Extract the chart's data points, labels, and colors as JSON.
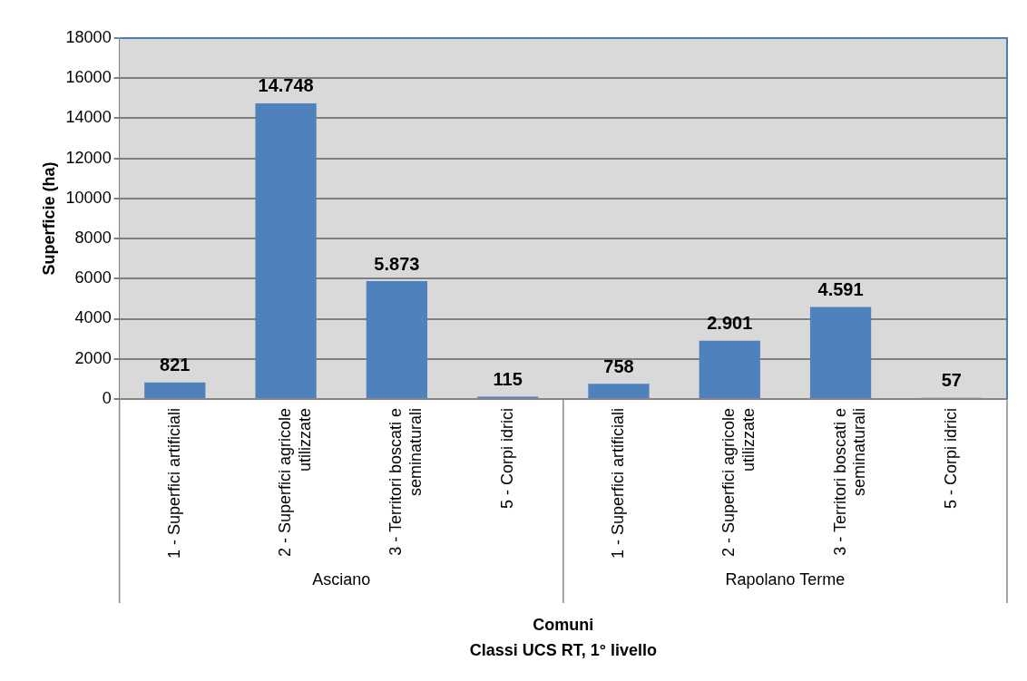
{
  "chart_data": {
    "type": "bar",
    "xlabel": "Comuni\nClassi UCS RT, 1° livello",
    "ylabel": "Superficie (ha)",
    "categories": [
      "1 - Superfici artificiali",
      "2 - Superfici agricole utilizzate",
      "3 - Territori boscati e seminaturali",
      "5 - Corpi idrici",
      "1 - Superfici artificiali",
      "2 - Superfici agricole utilizzate",
      "3 - Territori boscati e seminaturali",
      "5 - Corpi idrici"
    ],
    "values": [
      821,
      14748,
      5873,
      115,
      758,
      2901,
      4591,
      57
    ],
    "value_labels": [
      "821",
      "14.748",
      "5.873",
      "115",
      "758",
      "2.901",
      "4.591",
      "57"
    ],
    "color": "#4f81bd",
    "ylim": [
      0,
      18000
    ],
    "yticks": [
      0,
      2000,
      4000,
      6000,
      8000,
      10000,
      12000,
      14000,
      16000,
      18000
    ],
    "grid": "y",
    "legend": false,
    "annotations": [
      "Asciano",
      "Rapolano Terme"
    ]
  }
}
